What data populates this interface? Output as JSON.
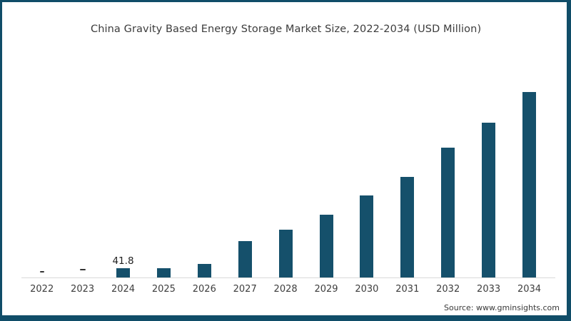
{
  "title": "China Gravity Based Energy Storage Market Size, 2022-2034 (USD Million)",
  "source": "Source: www.gminsights.com",
  "colors": {
    "bar": "#15506b",
    "frame_border": "#104d68",
    "axis_line": "#d9d9d9",
    "title_text": "#3c3c3c",
    "tick_text": "#3d3d3d",
    "dash_marker": "#333333"
  },
  "chart_data": {
    "type": "bar",
    "title": "China Gravity Based Energy Storage Market Size, 2022-2034 (USD Million)",
    "unit": "USD Million",
    "categories": [
      "2022",
      "2023",
      "2024",
      "2025",
      "2026",
      "2027",
      "2028",
      "2029",
      "2030",
      "2031",
      "2032",
      "2033",
      "2034"
    ],
    "values": [
      2,
      5,
      41.8,
      45,
      62,
      170,
      224,
      294,
      385,
      470,
      607,
      727,
      870
    ],
    "values_note": "only 2024 value (41.8) is labeled on the chart; all other values estimated from bar heights",
    "labeled_values": {
      "2024": "41.8"
    },
    "dash_marker_years": [
      "2022",
      "2023"
    ],
    "ylim": [
      0,
      950
    ],
    "grid": false,
    "legend": false,
    "xlabel": "",
    "ylabel": ""
  }
}
